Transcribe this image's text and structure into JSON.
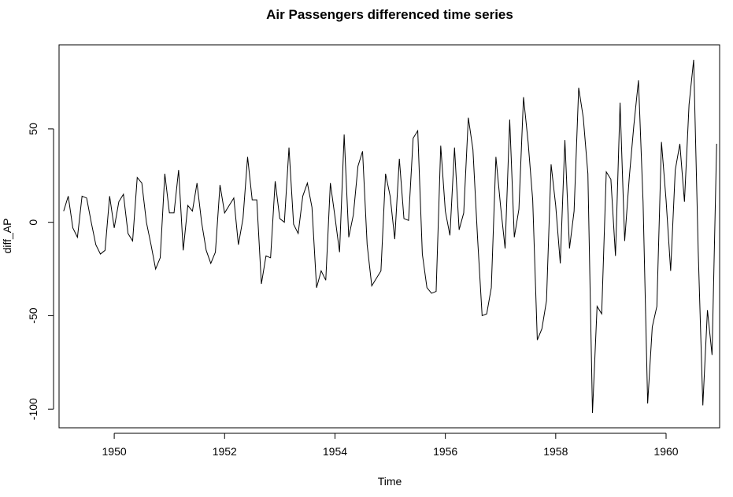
{
  "chart_data": {
    "type": "line",
    "title": "Air Passengers differenced time series",
    "xlabel": "Time",
    "ylabel": "diff_AP",
    "xlim": [
      1949.0,
      1960.97
    ],
    "ylim": [
      -110,
      95
    ],
    "x_ticks": [
      1950,
      1952,
      1954,
      1956,
      1958,
      1960
    ],
    "x_tick_labels": [
      "1950",
      "1952",
      "1954",
      "1956",
      "1958",
      "1960"
    ],
    "y_ticks": [
      -100,
      -50,
      0,
      50
    ],
    "y_tick_labels": [
      "-100",
      "-50",
      "0",
      "50"
    ],
    "grid": false,
    "legend": "none",
    "line_color": "#000000",
    "series": [
      {
        "x_start": 1949.0833,
        "x_step": 0.08333,
        "values": [
          6,
          14,
          -3,
          -8,
          14,
          13,
          0,
          -12,
          -17,
          -15,
          14,
          -3,
          11,
          15,
          -6,
          -10,
          24,
          21,
          0,
          -12,
          -25,
          -19,
          26,
          5,
          5,
          28,
          -15,
          9,
          6,
          21,
          0,
          -15,
          -22,
          -16,
          20,
          5,
          9,
          13,
          -12,
          2,
          35,
          12,
          12,
          -33,
          -18,
          -19,
          22,
          2,
          0,
          40,
          -1,
          -6,
          14,
          21,
          8,
          -35,
          -26,
          -31,
          21,
          3,
          -16,
          47,
          -8,
          4,
          30,
          38,
          -12,
          -34,
          -30,
          -26,
          26,
          14,
          -9,
          34,
          2,
          1,
          45,
          49,
          -17,
          -35,
          -38,
          -37,
          41,
          6,
          -7,
          40,
          -4,
          5,
          56,
          39,
          -8,
          -50,
          -49,
          -35,
          35,
          9,
          -14,
          55,
          -8,
          7,
          67,
          43,
          12,
          -63,
          -57,
          -42,
          31,
          9,
          -22,
          44,
          -14,
          6,
          72,
          56,
          26,
          -102,
          -45,
          -49,
          27,
          23,
          -18,
          64,
          -10,
          24,
          52,
          76,
          11,
          -97,
          -56,
          -45,
          43,
          12,
          -26,
          28,
          42,
          11,
          63,
          87,
          -16,
          -98,
          -47,
          -71,
          42
        ]
      }
    ]
  }
}
